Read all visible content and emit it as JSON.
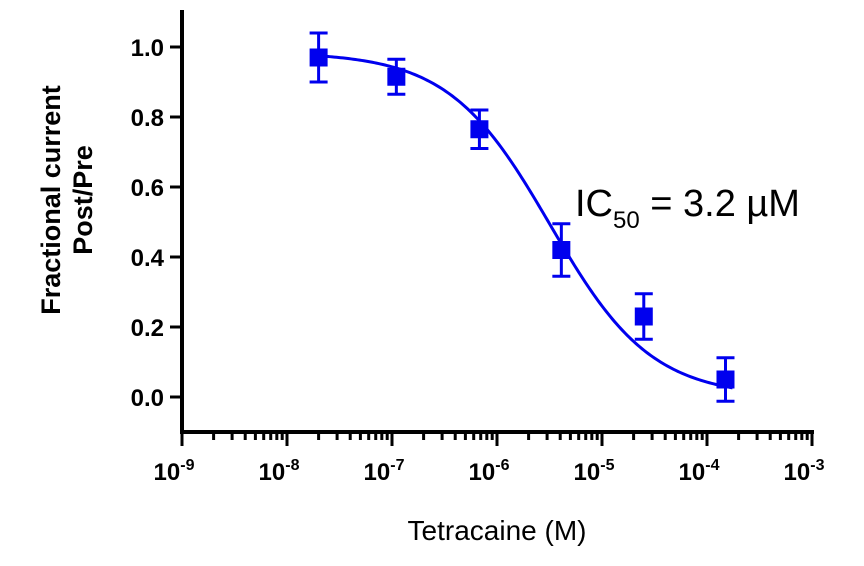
{
  "chart_data": {
    "type": "scatter",
    "x_scale": "log",
    "xlabel": "Tetracaine (M)",
    "ylabel_lines": [
      "Fractional current",
      "Post/Pre"
    ],
    "xlim": [
      1e-09,
      0.001
    ],
    "ylim": [
      -0.1,
      1.1
    ],
    "y_ticks": [
      "0.0",
      "0.2",
      "0.4",
      "0.6",
      "0.8",
      "1.0"
    ],
    "x_ticks": [
      {
        "base": "10",
        "exp": "-9"
      },
      {
        "base": "10",
        "exp": "-8"
      },
      {
        "base": "10",
        "exp": "-7"
      },
      {
        "base": "10",
        "exp": "-6"
      },
      {
        "base": "10",
        "exp": "-5"
      },
      {
        "base": "10",
        "exp": "-4"
      },
      {
        "base": "10",
        "exp": "-3"
      }
    ],
    "series": [
      {
        "color": "#0000ee",
        "marker": "square",
        "points": [
          {
            "x": 2e-08,
            "y": 0.97,
            "err": 0.07
          },
          {
            "x": 1.1e-07,
            "y": 0.915,
            "err": 0.05
          },
          {
            "x": 6.8e-07,
            "y": 0.765,
            "err": 0.055
          },
          {
            "x": 4.1e-06,
            "y": 0.42,
            "err": 0.075
          },
          {
            "x": 2.5e-05,
            "y": 0.23,
            "err": 0.065
          },
          {
            "x": 0.00015,
            "y": 0.05,
            "err": 0.062
          }
        ]
      }
    ],
    "fit": {
      "top": 0.985,
      "bottom": 0.0,
      "ic50": 3.2e-06,
      "hill": 0.9
    },
    "annotation": {
      "prefix": "IC",
      "sub": "50",
      "suffix": " = 3.2 µM"
    },
    "grid": false,
    "legend": "none"
  }
}
